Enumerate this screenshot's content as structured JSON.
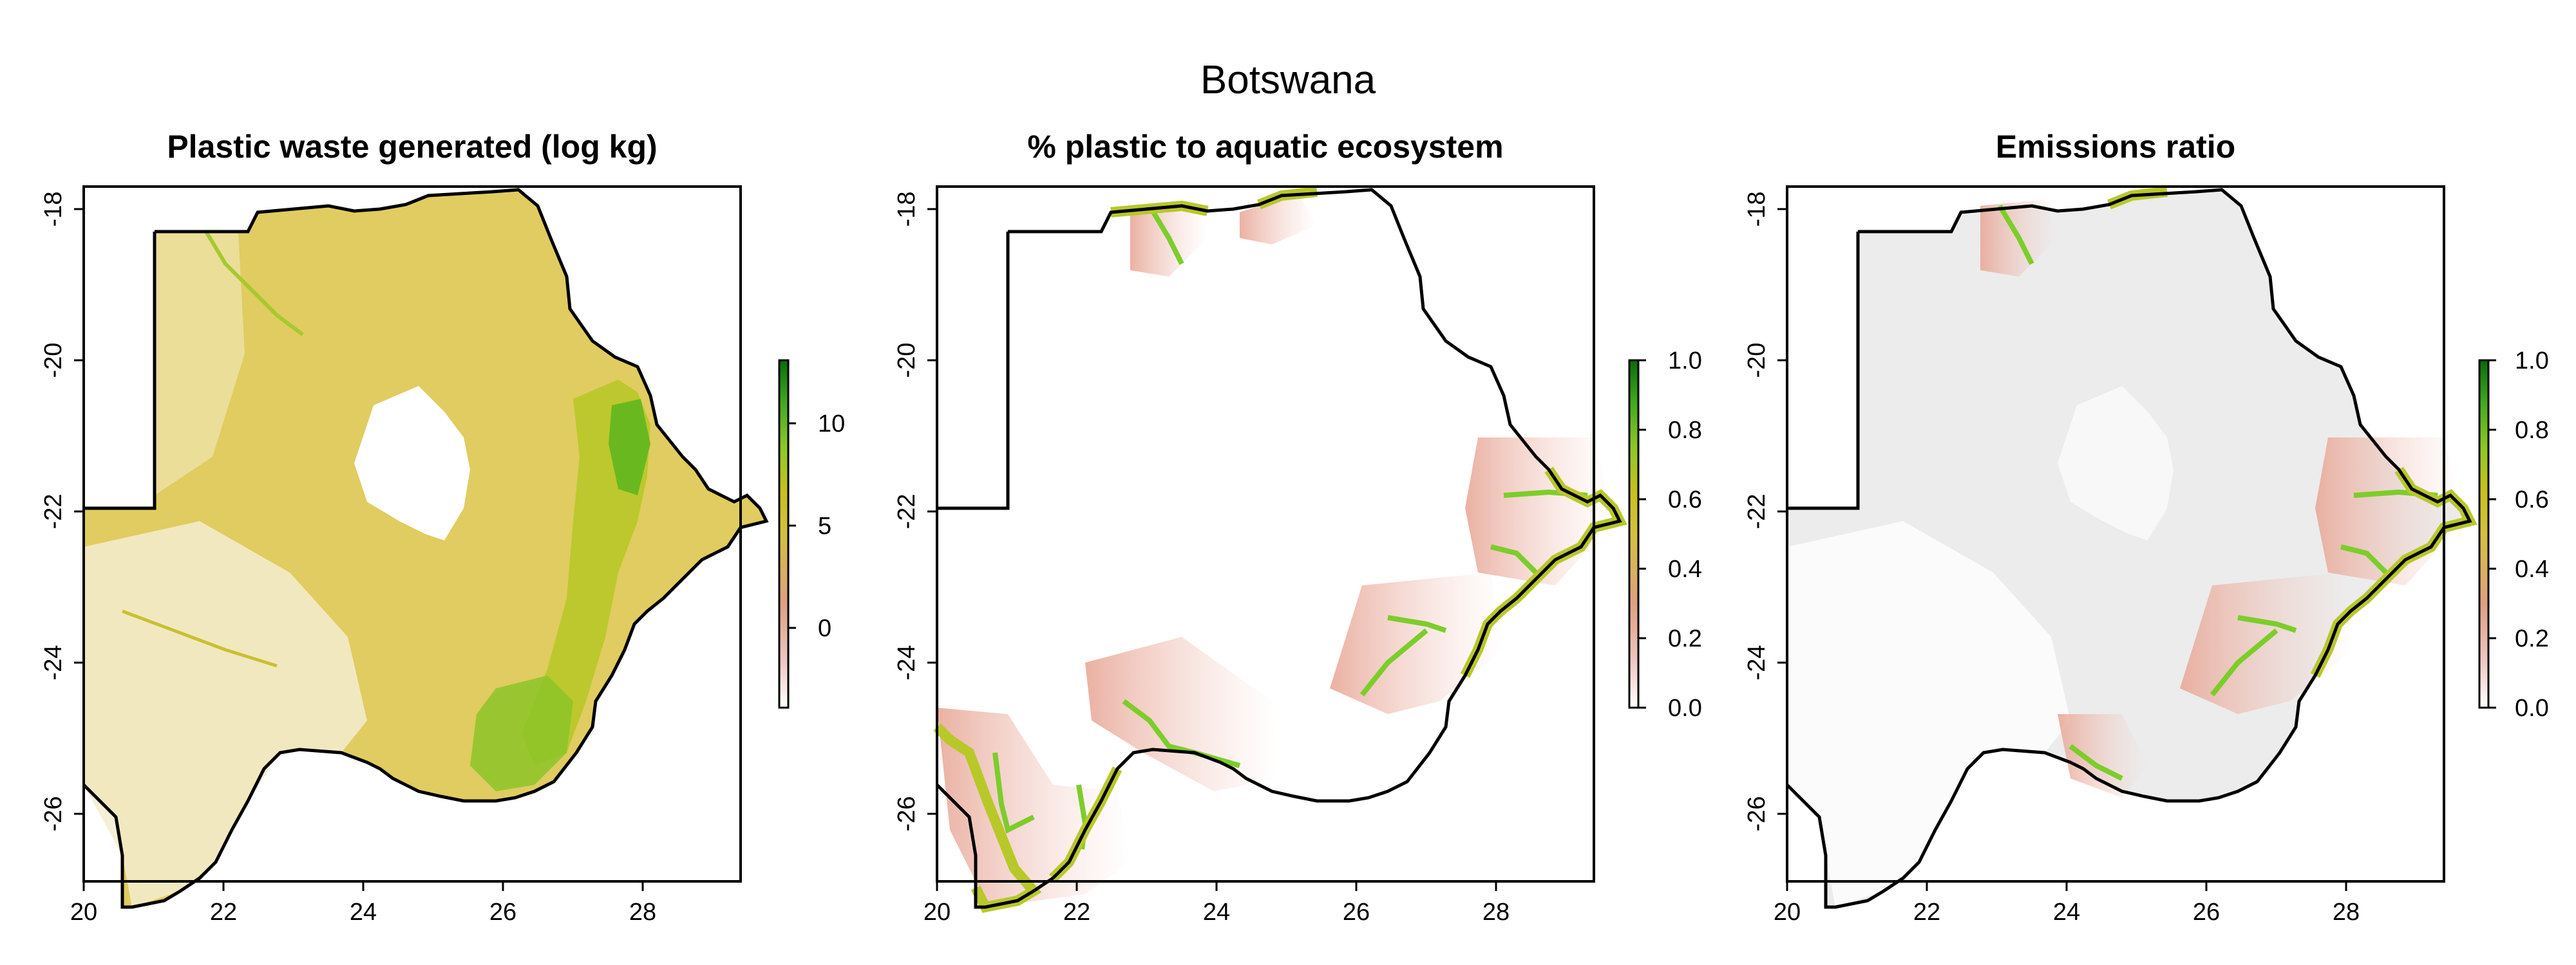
{
  "title": "Botswana",
  "panels": [
    {
      "title": "Plastic waste generated (log kg)",
      "x_ticks": [
        "20",
        "22",
        "24",
        "26",
        "28"
      ],
      "y_ticks": [
        "-18",
        "-20",
        "-22",
        "-24",
        "-26"
      ],
      "legend_ticks": [
        "0",
        "5",
        "10"
      ],
      "fill": "waste"
    },
    {
      "title": "% plastic to aquatic ecosystem",
      "x_ticks": [
        "20",
        "22",
        "24",
        "26",
        "28"
      ],
      "y_ticks": [
        "-18",
        "-20",
        "-22",
        "-24",
        "-26"
      ],
      "legend_ticks": [
        "0.0",
        "0.2",
        "0.4",
        "0.6",
        "0.8",
        "1.0"
      ],
      "fill": "aquatic"
    },
    {
      "title": "Emissions ratio",
      "x_ticks": [
        "20",
        "22",
        "24",
        "26",
        "28"
      ],
      "y_ticks": [
        "-18",
        "-20",
        "-22",
        "-24",
        "-26"
      ],
      "legend_ticks": [
        "0.0",
        "0.2",
        "0.4",
        "0.6",
        "0.8",
        "1.0"
      ],
      "fill": "emissions"
    }
  ],
  "map_extent": {
    "lon": [
      20,
      29.4
    ],
    "lat": [
      -27,
      -17.8
    ]
  },
  "legend_ranges": {
    "waste": [
      -4,
      13
    ],
    "ratio": [
      0,
      1
    ]
  },
  "colors": {
    "ramp": [
      "#ffffff",
      "#eec5c0",
      "#dfa080",
      "#d4c040",
      "#c8c020",
      "#8cc828",
      "#40a820",
      "#0a6a0a"
    ],
    "background_fill": "#ececec",
    "waste_fill": "#d8c43c",
    "river": "#7ccd2a",
    "border": "#000000"
  }
}
